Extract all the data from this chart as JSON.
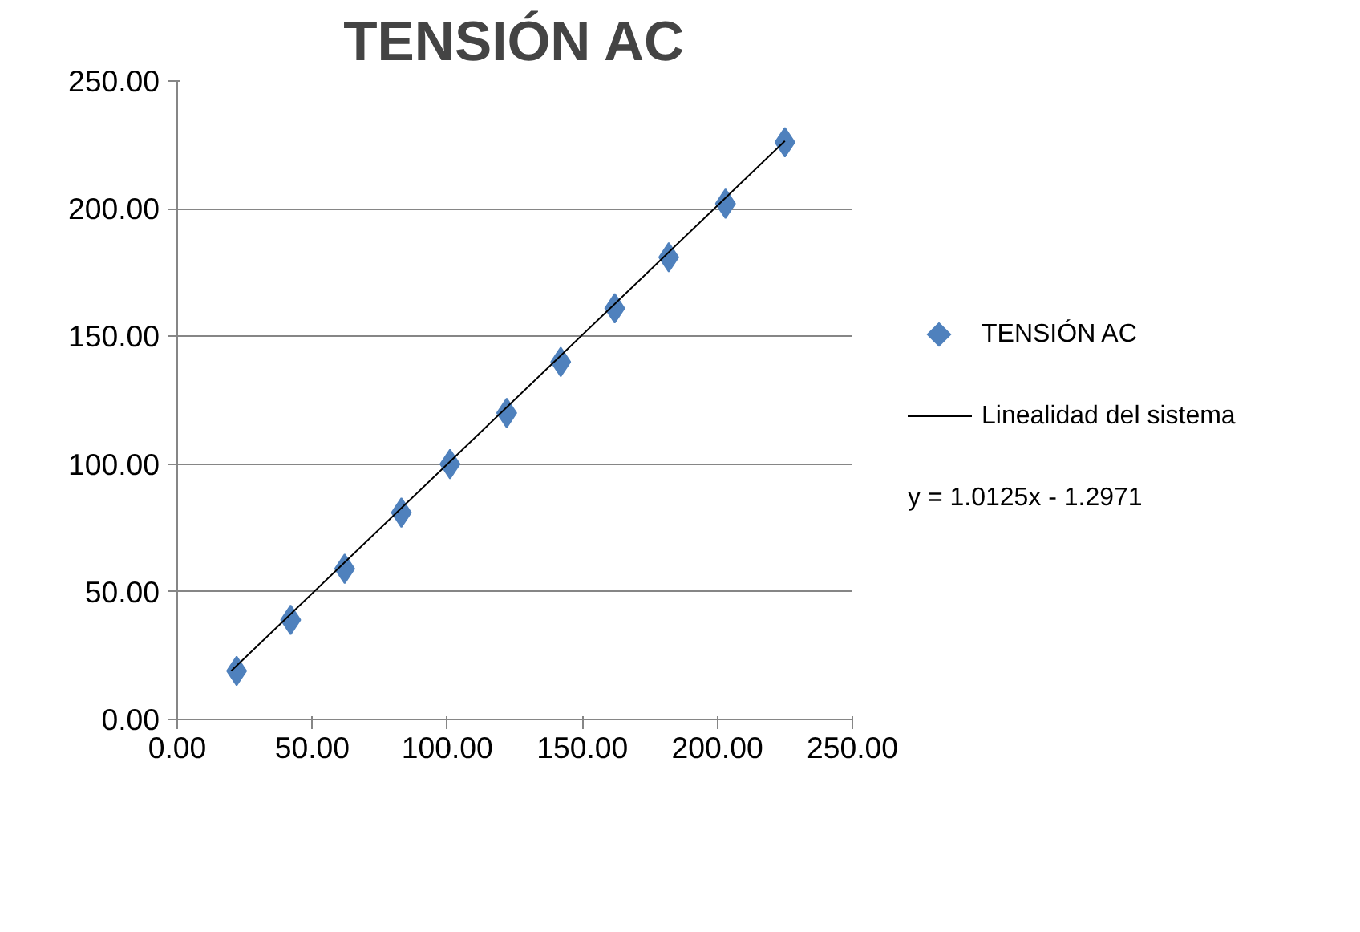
{
  "chart_data": {
    "type": "scatter",
    "title": "TENSIÓN AC",
    "x": [
      22,
      42,
      62,
      83,
      101,
      122,
      142,
      162,
      182,
      203,
      225
    ],
    "series": [
      {
        "name": "TENSIÓN AC",
        "color": "#4f81bd",
        "marker": "diamond",
        "values": [
          19,
          39,
          59,
          81,
          100,
          120,
          140,
          161,
          181,
          202,
          226
        ]
      },
      {
        "name": "Linealidad del sistema",
        "type": "line",
        "color": "#000000",
        "marker": "none",
        "x": [
          20,
          225
        ],
        "values": [
          19,
          226.5
        ]
      }
    ],
    "annotations": [
      "y = 1.0125x - 1.2971"
    ],
    "xlim": [
      0,
      250
    ],
    "ylim": [
      0,
      250
    ],
    "xticks": [
      {
        "value": 0,
        "label": "0.00"
      },
      {
        "value": 50,
        "label": "50.00"
      },
      {
        "value": 100,
        "label": "100.00"
      },
      {
        "value": 150,
        "label": "150.00"
      },
      {
        "value": 200,
        "label": "200.00"
      },
      {
        "value": 250,
        "label": "250.00"
      }
    ],
    "yticks": [
      {
        "value": 0,
        "label": "0.00"
      },
      {
        "value": 50,
        "label": "50.00"
      },
      {
        "value": 100,
        "label": "100.00"
      },
      {
        "value": 150,
        "label": "150.00"
      },
      {
        "value": 200,
        "label": "200.00"
      },
      {
        "value": 250,
        "label": "250.00"
      }
    ],
    "grid": "y",
    "legend": "right"
  }
}
